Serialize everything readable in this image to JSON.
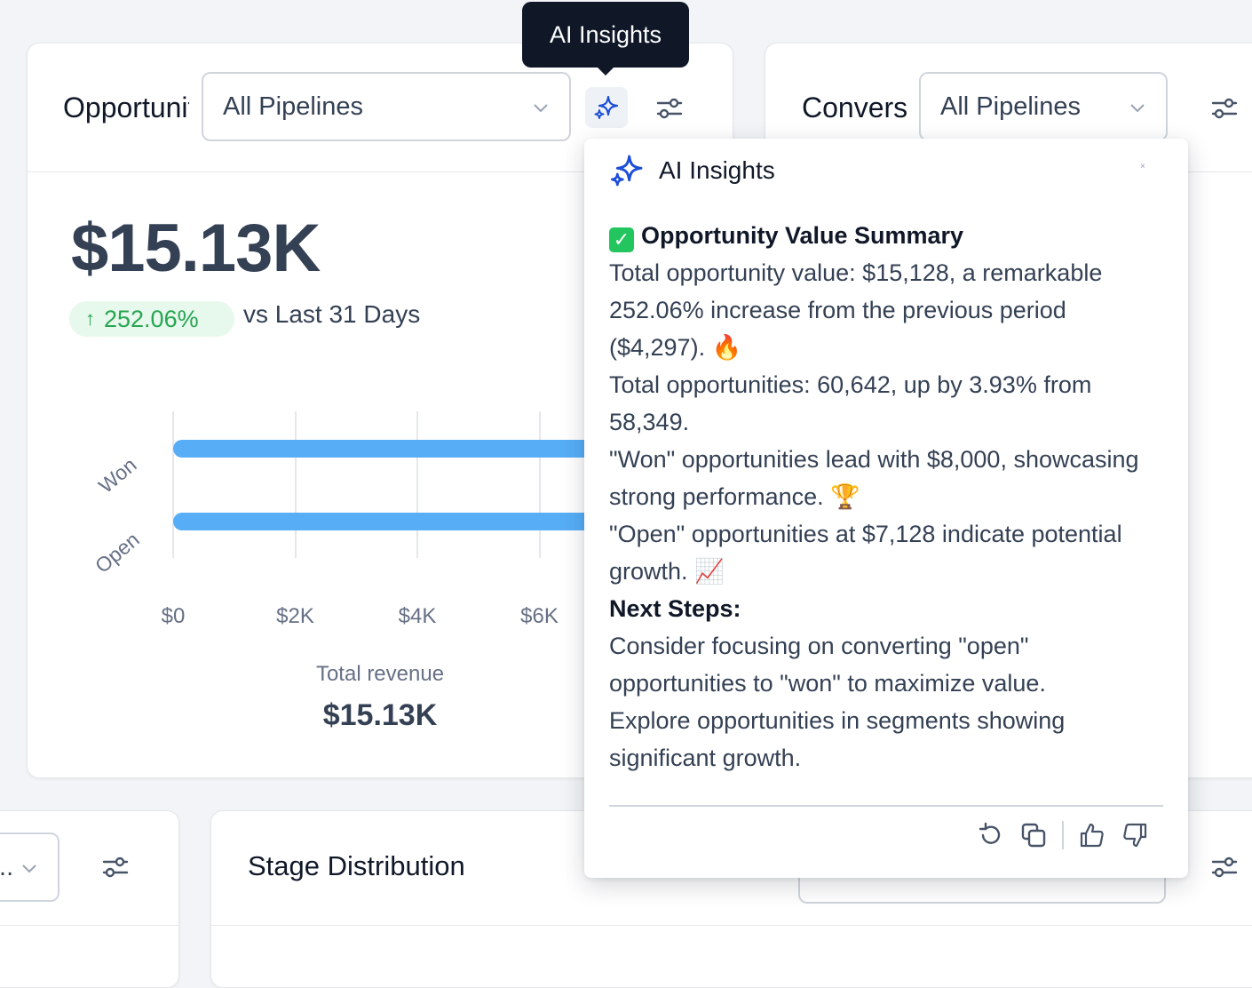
{
  "widget1": {
    "title": "Opportunity Value",
    "pipeline_select": "All Pipelines",
    "value": "$15.13K",
    "change_badge": "252.06%",
    "comparison": "vs Last 31 Days",
    "total_label": "Total revenue",
    "total_value": "$15.13K"
  },
  "tooltip": {
    "text": "AI Insights"
  },
  "widget2": {
    "title": "Conversion",
    "pipeline_select": "All Pipelines"
  },
  "widget3": {
    "select_text": "..."
  },
  "widget4": {
    "title": "Stage Distribution"
  },
  "chart_data": {
    "type": "bar",
    "orientation": "horizontal",
    "categories": [
      "Won",
      "Open"
    ],
    "values": [
      8000,
      7128
    ],
    "x_ticks": [
      "$0",
      "$2K",
      "$4K",
      "$6K"
    ],
    "xlim": [
      0,
      8000
    ]
  },
  "insights": {
    "title": "AI Insights",
    "close": "×",
    "summary_heading": "Opportunity Value Summary",
    "line1": "Total opportunity value: $15,128, a remarkable 252.06% increase from the previous period ($4,297).",
    "line1_emoji": "🔥",
    "line2": "Total opportunities: 60,642, up by 3.93% from 58,349.",
    "line3": "\"Won\" opportunities lead with $8,000, showcasing strong performance.",
    "line3_emoji": "🏆",
    "line4": "\"Open\" opportunities at $7,128 indicate potential growth.",
    "line4_emoji": "📈",
    "next_steps_heading": "Next Steps:",
    "step1": "Consider focusing on converting \"open\" opportunities to \"won\" to maximize value.",
    "step2": "Explore opportunities in segments showing significant growth."
  },
  "icons": {
    "sparkle": "sparkle-icon",
    "filter": "filter-sliders-icon",
    "chevron": "chevron-down-icon",
    "regenerate": "refresh-icon",
    "copy": "copy-icon",
    "thumbs_up": "thumbs-up-icon",
    "thumbs_down": "thumbs-down-icon"
  },
  "colors": {
    "accent": "#1d4ed8",
    "bar": "#57aef6",
    "positive": "#27a552",
    "tooltip_bg": "#101828"
  }
}
